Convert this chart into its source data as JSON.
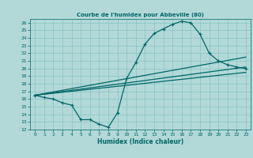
{
  "title": "Courbe de l'humidex pour Abbeville (80)",
  "xlabel": "Humidex (Indice chaleur)",
  "bg_color": "#b2d8d8",
  "line_color": "#006666",
  "grid_color": "#7fbfbf",
  "xlim": [
    -0.5,
    23.5
  ],
  "ylim": [
    12,
    26.5
  ],
  "xticks": [
    0,
    1,
    2,
    3,
    4,
    5,
    6,
    7,
    8,
    9,
    10,
    11,
    12,
    13,
    14,
    15,
    16,
    17,
    18,
    19,
    20,
    21,
    22,
    23
  ],
  "yticks": [
    12,
    13,
    14,
    15,
    16,
    17,
    18,
    19,
    20,
    21,
    22,
    23,
    24,
    25,
    26
  ],
  "curve1_x": [
    0,
    1,
    2,
    3,
    4,
    5,
    6,
    7,
    8,
    9,
    10,
    11,
    12,
    13,
    14,
    15,
    16,
    17,
    18,
    19,
    20,
    21,
    22,
    23
  ],
  "curve1_y": [
    16.5,
    16.2,
    16.0,
    15.5,
    15.2,
    13.3,
    13.3,
    12.7,
    12.3,
    14.2,
    18.7,
    20.8,
    23.2,
    24.6,
    25.2,
    25.8,
    26.2,
    26.0,
    24.5,
    22.0,
    21.0,
    20.5,
    20.2,
    20.0
  ],
  "line2_x": [
    0,
    23
  ],
  "line2_y": [
    16.5,
    20.2
  ],
  "line3_x": [
    0,
    23
  ],
  "line3_y": [
    16.5,
    19.5
  ],
  "line4_x": [
    0,
    23
  ],
  "line4_y": [
    16.5,
    21.5
  ]
}
